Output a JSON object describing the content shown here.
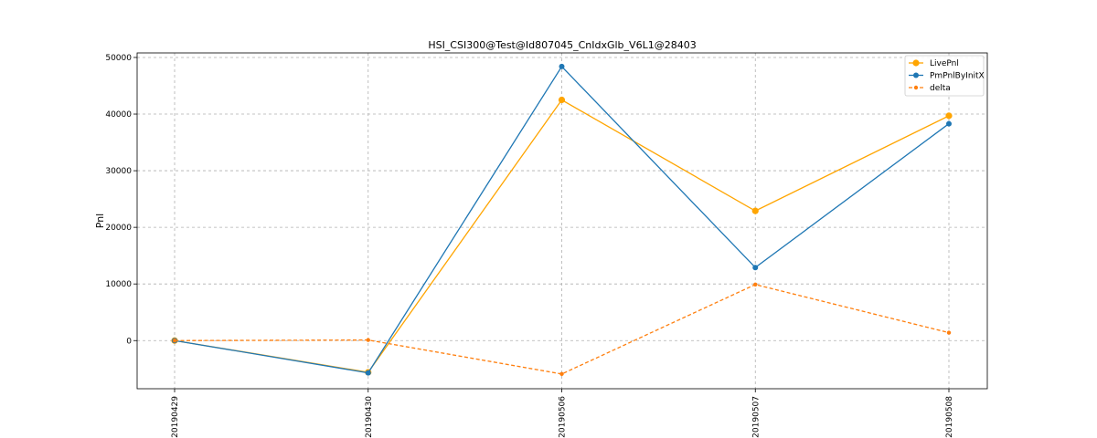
{
  "chart_data": {
    "type": "line",
    "title": "HSI_CSI300@Test@Id807045_CnIdxGlb_V6L1@28403",
    "xlabel": "",
    "ylabel": "Pnl",
    "categories": [
      "20190429",
      "20190430",
      "20190506",
      "20190507",
      "20190508"
    ],
    "yticks": [
      0,
      10000,
      20000,
      30000,
      40000,
      50000
    ],
    "ylim": [
      -8500,
      50800
    ],
    "grid": true,
    "legend_position": "top-right",
    "series": [
      {
        "name": "LivePnl",
        "color": "#ffa500",
        "style": "solid",
        "marker": "circle-large",
        "values": [
          0,
          -5600,
          42500,
          22900,
          39700
        ]
      },
      {
        "name": "PmPnlByInitX",
        "color": "#1f77b4",
        "style": "solid",
        "marker": "circle",
        "values": [
          0,
          -5700,
          48400,
          12900,
          38300
        ]
      },
      {
        "name": "delta",
        "color": "#ff7f0e",
        "style": "dashed",
        "marker": "circle-small",
        "values": [
          0,
          100,
          -5900,
          9900,
          1400
        ]
      }
    ]
  }
}
